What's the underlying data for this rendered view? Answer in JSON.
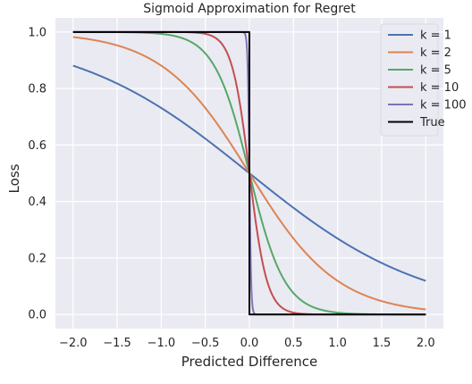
{
  "chart_data": {
    "type": "line",
    "title": "Sigmoid Approximation for Regret",
    "xlabel": "Predicted Difference",
    "ylabel": "Loss",
    "xlim": [
      -2.2,
      2.2
    ],
    "ylim": [
      -0.05,
      1.05
    ],
    "xticks": [
      -2.0,
      -1.5,
      -1.0,
      -0.5,
      0.0,
      0.5,
      1.0,
      1.5,
      2.0
    ],
    "xtick_labels": [
      "−2.0",
      "−1.5",
      "−1.0",
      "−0.5",
      "0.0",
      "0.5",
      "1.0",
      "1.5",
      "2.0"
    ],
    "yticks": [
      0.0,
      0.2,
      0.4,
      0.6,
      0.8,
      1.0
    ],
    "ytick_labels": [
      "0.0",
      "0.2",
      "0.4",
      "0.6",
      "0.8",
      "1.0"
    ],
    "grid": true,
    "background": "#eaeaf2",
    "legend_position": "top-right",
    "series": [
      {
        "name": "k = 1",
        "function": "sigmoid",
        "k": 1,
        "color": "#4c72b0",
        "x": [
          -2.0,
          -1.5,
          -1.0,
          -0.5,
          0.0,
          0.5,
          1.0,
          1.5,
          2.0
        ],
        "y": [
          0.881,
          0.818,
          0.731,
          0.622,
          0.5,
          0.378,
          0.269,
          0.182,
          0.119
        ]
      },
      {
        "name": "k = 2",
        "function": "sigmoid",
        "k": 2,
        "color": "#dd8452",
        "x": [
          -2.0,
          -1.5,
          -1.0,
          -0.5,
          0.0,
          0.5,
          1.0,
          1.5,
          2.0
        ],
        "y": [
          0.982,
          0.953,
          0.881,
          0.731,
          0.5,
          0.269,
          0.119,
          0.047,
          0.018
        ]
      },
      {
        "name": "k = 5",
        "function": "sigmoid",
        "k": 5,
        "color": "#55a868",
        "x": [
          -2.0,
          -1.5,
          -1.0,
          -0.5,
          0.0,
          0.5,
          1.0,
          1.5,
          2.0
        ],
        "y": [
          1.0,
          0.999,
          0.993,
          0.924,
          0.5,
          0.076,
          0.007,
          0.001,
          0.0
        ]
      },
      {
        "name": "k = 10",
        "function": "sigmoid",
        "k": 10,
        "color": "#c44e52",
        "x": [
          -2.0,
          -1.0,
          -0.5,
          -0.25,
          0.0,
          0.25,
          0.5,
          1.0,
          2.0
        ],
        "y": [
          1.0,
          1.0,
          0.993,
          0.924,
          0.5,
          0.076,
          0.007,
          0.0,
          0.0
        ]
      },
      {
        "name": "k = 100",
        "function": "sigmoid",
        "k": 100,
        "color": "#8172b3",
        "x": [
          -2.0,
          -0.1,
          -0.05,
          -0.02,
          0.0,
          0.02,
          0.05,
          0.1,
          2.0
        ],
        "y": [
          1.0,
          1.0,
          0.993,
          0.881,
          0.5,
          0.119,
          0.007,
          0.0,
          0.0
        ]
      },
      {
        "name": "True",
        "function": "step",
        "color": "#000000",
        "x": [
          -2.0,
          0.0,
          0.0,
          2.0
        ],
        "y": [
          1.0,
          1.0,
          0.0,
          0.0
        ]
      }
    ]
  }
}
